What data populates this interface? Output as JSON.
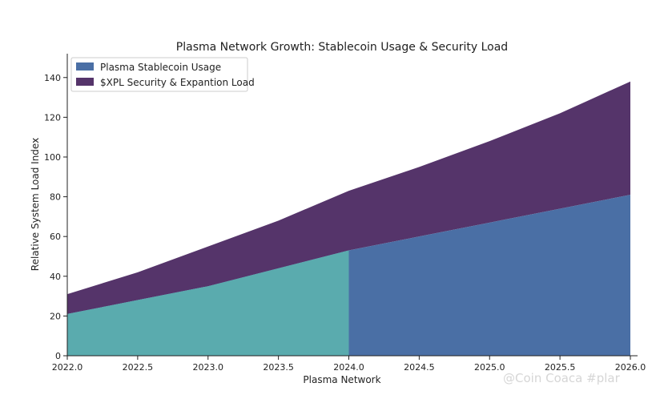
{
  "watermark": "@Coin Coaca #plar",
  "chart_data": {
    "type": "area",
    "stacked": true,
    "title": "Plasma Network Growth: Stablecoin Usage & Security Load",
    "xlabel": "Plasma Network",
    "ylabel": "Relative System Load Index",
    "xlim": [
      2022.0,
      2026.0
    ],
    "ylim": [
      0,
      152
    ],
    "xticks": [
      2022.0,
      2022.5,
      2023.0,
      2023.5,
      2024.0,
      2024.5,
      2025.0,
      2025.5,
      2026.0
    ],
    "xtick_labels": [
      "2022.0",
      "2022.5",
      "2023.0",
      "2023.5",
      "2024.0",
      "2024.5",
      "2025.0",
      "2025.5",
      "2026.0"
    ],
    "yticks": [
      0,
      20,
      40,
      60,
      80,
      100,
      120,
      140
    ],
    "ytick_labels": [
      "0",
      "20",
      "40",
      "60",
      "80",
      "100",
      "120",
      "140"
    ],
    "grid": false,
    "legend_position": "top-left",
    "x": [
      2022.0,
      2022.5,
      2023.0,
      2023.5,
      2024.0,
      2024.5,
      2025.0,
      2025.5,
      2026.0
    ],
    "series": [
      {
        "name": "Plasma Stablecoin Usage",
        "color": "#4a6fa5",
        "segment_color": "#5aabae",
        "segment_until": 2024.0,
        "values": [
          21,
          28,
          35,
          44,
          53,
          60,
          67,
          74,
          81
        ]
      },
      {
        "name": "$XPL Security & Expantion Load",
        "color": "#55346a",
        "values": [
          10,
          14,
          20,
          24,
          30,
          35,
          41,
          48,
          57
        ]
      }
    ]
  }
}
